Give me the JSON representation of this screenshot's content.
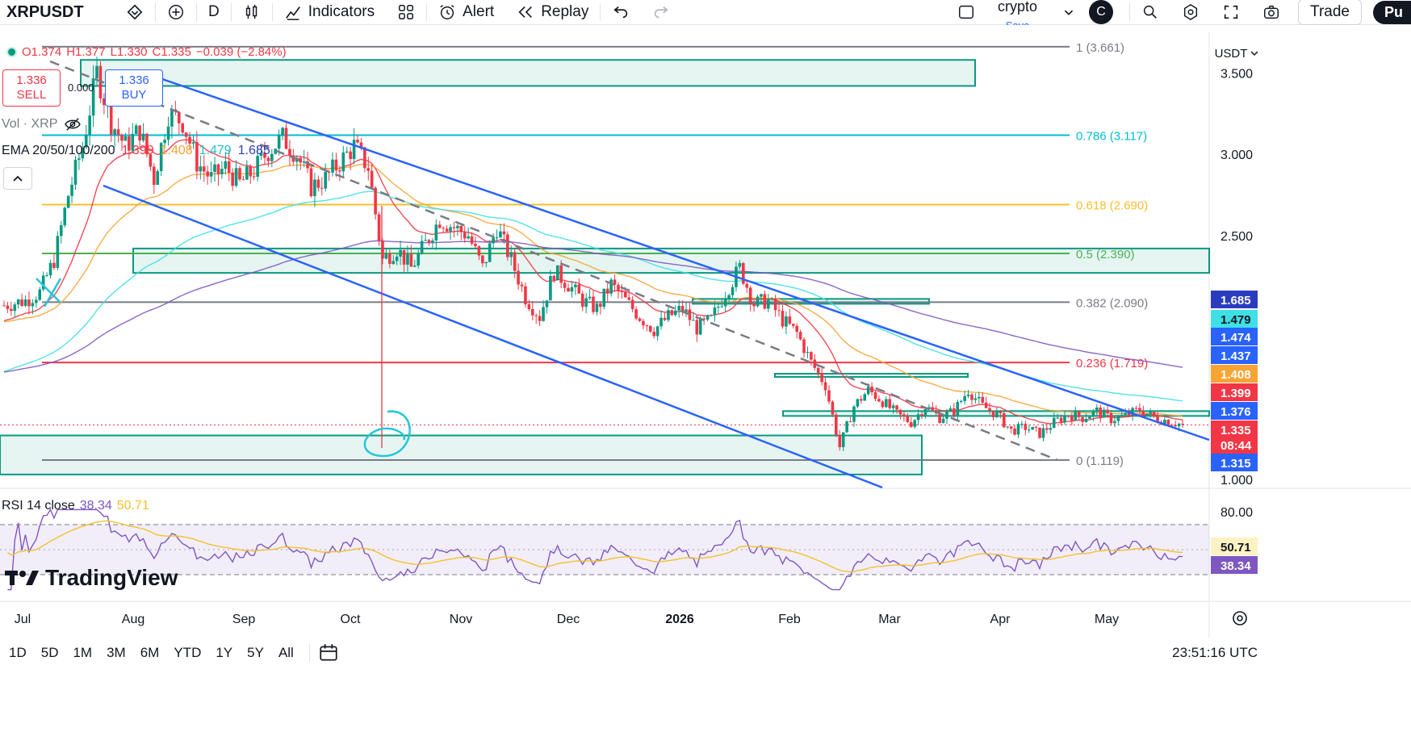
{
  "toolbar": {
    "symbol": "XRPUSDT",
    "interval": "D",
    "indicators_label": "Indicators",
    "alert_label": "Alert",
    "replay_label": "Replay",
    "layout_name": "crypto",
    "save_label": "Save",
    "user_initial": "C",
    "trade_label": "Trade",
    "publish_label": "Pu"
  },
  "ohlc": {
    "o": "O1.374",
    "h": "H1.377",
    "l": "L1.330",
    "c": "C1.335",
    "chg": "−0.039 (−2.84%)"
  },
  "sell": {
    "price": "1.336",
    "label": "SELL"
  },
  "buy": {
    "price": "1.336",
    "label": "BUY"
  },
  "spread": "0.000",
  "vol_legend": "Vol · XRP",
  "ema_legend": {
    "label": "EMA 20/50/100/200",
    "v20": "1.399",
    "v50": "1.408",
    "v100": "1.479",
    "v200": "1.685"
  },
  "rsi_legend": {
    "label": "RSI 14 close",
    "rsi": "38.34",
    "ma": "50.71"
  },
  "currency": "USDT",
  "logo_text": "TradingView",
  "ranges": [
    "1D",
    "5D",
    "1M",
    "3M",
    "6M",
    "YTD",
    "1Y",
    "5Y",
    "All"
  ],
  "clock": "23:51:16 UTC",
  "colors": {
    "up": "#089981",
    "down": "#f23645",
    "trend": "#2962ff",
    "ema20": "#f23645",
    "ema50": "#f7a433",
    "ema100": "#3ee0e5",
    "ema200": "#7e57c2",
    "zone": "#089981"
  },
  "chart_data": {
    "type": "candlestick",
    "y_axis_ticks": [
      "3.500",
      "3.000",
      "2.500",
      "1.000"
    ],
    "ylim": [
      0.95,
      3.75
    ],
    "x_tick_labels": [
      "Jul",
      "Aug",
      "Sep",
      "Oct",
      "Nov",
      "Dec",
      "2026",
      "Feb",
      "Mar",
      "Apr",
      "May"
    ],
    "fib_levels": [
      {
        "ratio": "1",
        "price": 3.661,
        "label": "1 (3.661)",
        "color": "#787b86"
      },
      {
        "ratio": "0.786",
        "price": 3.117,
        "label": "0.786 (3.117)",
        "color": "#00bcd4"
      },
      {
        "ratio": "0.618",
        "price": 2.69,
        "label": "0.618 (2.690)",
        "color": "#f5c02e"
      },
      {
        "ratio": "0.5",
        "price": 2.39,
        "label": "0.5 (2.390)",
        "color": "#4caf50"
      },
      {
        "ratio": "0.382",
        "price": 2.09,
        "label": "0.382 (2.090)",
        "color": "#787b86"
      },
      {
        "ratio": "0.236",
        "price": 1.719,
        "label": "0.236 (1.719)",
        "color": "#f23645"
      },
      {
        "ratio": "0",
        "price": 1.119,
        "label": "0 (1.119)",
        "color": "#787b86"
      }
    ],
    "price_labels": [
      {
        "value": "1.685",
        "bg": "#2b3dbf",
        "fg": "#ffffff",
        "price": 1.685
      },
      {
        "value": "1.479",
        "bg": "#3ee0e5",
        "fg": "#131722",
        "price": 1.479
      },
      {
        "value": "1.474",
        "bg": "#2962ff",
        "fg": "#ffffff",
        "price": 1.474
      },
      {
        "value": "1.437",
        "bg": "#2962ff",
        "fg": "#ffffff",
        "price": 1.437
      },
      {
        "value": "1.408",
        "bg": "#f7a433",
        "fg": "#ffffff",
        "price": 1.408
      },
      {
        "value": "1.399",
        "bg": "#f23645",
        "fg": "#ffffff",
        "price": 1.399
      },
      {
        "value": "1.376",
        "bg": "#2962ff",
        "fg": "#ffffff",
        "price": 1.376
      },
      {
        "value": "1.335",
        "bg": "#f23645",
        "fg": "#ffffff",
        "price": 1.335
      },
      {
        "value": "08:44",
        "bg": "#f23645",
        "fg": "#ffffff",
        "price": 1.335
      },
      {
        "value": "1.315",
        "bg": "#2962ff",
        "fg": "#ffffff",
        "price": 1.315
      }
    ],
    "rsi_axis_ticks": [
      "80.00"
    ],
    "rsi_labels": [
      {
        "value": "50.71",
        "bg": "#fff2c2",
        "fg": "#131722"
      },
      {
        "value": "38.34",
        "bg": "#7e57c2",
        "fg": "#ffffff"
      }
    ],
    "rsi_bands": [
      30,
      70
    ],
    "rsi_current": 38.34,
    "rsi_ma": 50.71,
    "zones": [
      {
        "top": 3.58,
        "bottom": 3.42
      },
      {
        "top": 2.42,
        "bottom": 2.27
      },
      {
        "top": 2.11,
        "bottom": 2.08
      },
      {
        "top": 1.65,
        "bottom": 1.63
      },
      {
        "top": 1.42,
        "bottom": 1.39
      },
      {
        "top": 1.27,
        "bottom": 1.03
      }
    ],
    "price_path": [
      [
        0,
        2.07
      ],
      [
        6,
        2.1
      ],
      [
        10,
        2.15
      ],
      [
        14,
        2.35
      ],
      [
        18,
        2.75
      ],
      [
        22,
        3.05
      ],
      [
        26,
        3.5
      ],
      [
        30,
        3.2
      ],
      [
        34,
        3.05
      ],
      [
        38,
        3.15
      ],
      [
        42,
        2.85
      ],
      [
        46,
        3.25
      ],
      [
        50,
        3.2
      ],
      [
        54,
        2.95
      ],
      [
        58,
        2.85
      ],
      [
        62,
        2.92
      ],
      [
        66,
        2.82
      ],
      [
        70,
        2.9
      ],
      [
        74,
        3.02
      ],
      [
        78,
        3.1
      ],
      [
        82,
        3.0
      ],
      [
        86,
        2.8
      ],
      [
        90,
        2.85
      ],
      [
        94,
        2.95
      ],
      [
        98,
        3.05
      ],
      [
        102,
        2.92
      ],
      [
        106,
        2.35
      ],
      [
        110,
        2.42
      ],
      [
        114,
        2.3
      ],
      [
        118,
        2.45
      ],
      [
        122,
        2.6
      ],
      [
        126,
        2.55
      ],
      [
        130,
        2.5
      ],
      [
        134,
        2.3
      ],
      [
        138,
        2.55
      ],
      [
        142,
        2.35
      ],
      [
        146,
        2.12
      ],
      [
        150,
        2.0
      ],
      [
        154,
        2.28
      ],
      [
        158,
        2.2
      ],
      [
        162,
        2.1
      ],
      [
        166,
        2.05
      ],
      [
        170,
        2.2
      ],
      [
        174,
        2.1
      ],
      [
        178,
        2.0
      ],
      [
        182,
        1.92
      ],
      [
        186,
        2.0
      ],
      [
        190,
        2.05
      ],
      [
        194,
        1.93
      ],
      [
        198,
        1.98
      ],
      [
        202,
        2.15
      ],
      [
        206,
        2.3
      ],
      [
        210,
        2.08
      ],
      [
        214,
        2.1
      ],
      [
        218,
        1.98
      ],
      [
        222,
        1.9
      ],
      [
        226,
        1.72
      ],
      [
        230,
        1.58
      ],
      [
        234,
        1.2
      ],
      [
        238,
        1.45
      ],
      [
        242,
        1.55
      ],
      [
        246,
        1.48
      ],
      [
        250,
        1.4
      ],
      [
        254,
        1.35
      ],
      [
        258,
        1.45
      ],
      [
        262,
        1.38
      ],
      [
        266,
        1.42
      ],
      [
        270,
        1.55
      ],
      [
        274,
        1.45
      ],
      [
        278,
        1.4
      ],
      [
        282,
        1.3
      ],
      [
        286,
        1.32
      ],
      [
        290,
        1.28
      ],
      [
        294,
        1.35
      ],
      [
        298,
        1.4
      ],
      [
        302,
        1.38
      ],
      [
        306,
        1.42
      ],
      [
        310,
        1.37
      ],
      [
        314,
        1.39
      ],
      [
        318,
        1.43
      ],
      [
        322,
        1.38
      ],
      [
        326,
        1.36
      ],
      [
        330,
        1.335
      ]
    ],
    "total_days": 330
  }
}
